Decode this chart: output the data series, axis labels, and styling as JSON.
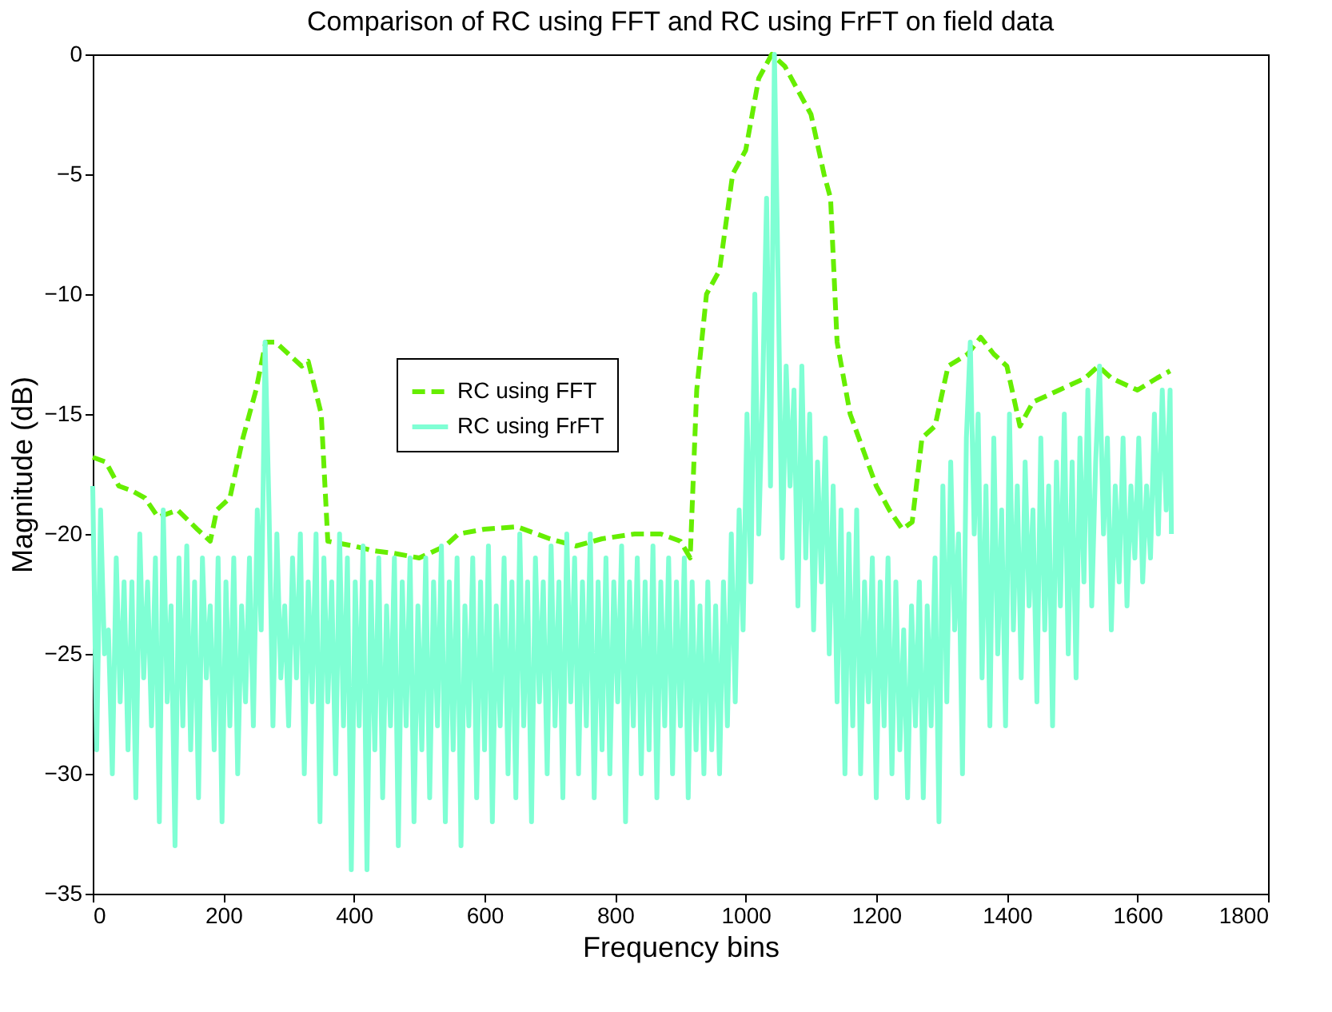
{
  "chart_data": {
    "type": "line",
    "title": "Comparison of RC using FFT and RC using FrFT on field data",
    "xlabel": "Frequency bins",
    "ylabel": "Magnitude (dB)",
    "xlim": [
      0,
      1800
    ],
    "xticks": [
      0,
      200,
      400,
      600,
      800,
      1000,
      1200,
      1400,
      1600,
      1800
    ],
    "ylim": [
      -35,
      0
    ],
    "yticks": [
      -35,
      -30,
      -25,
      -20,
      -15,
      -10,
      -5,
      0
    ],
    "grid": false,
    "legend": "top left",
    "series": [
      {
        "name": "RC using FFT",
        "color": "#66ee00",
        "line_style": "dashed",
        "x": [
          0,
          20,
          40,
          60,
          80,
          100,
          130,
          160,
          180,
          190,
          210,
          230,
          250,
          265,
          280,
          300,
          320,
          330,
          350,
          360,
          400,
          430,
          460,
          500,
          540,
          560,
          600,
          650,
          700,
          740,
          780,
          830,
          870,
          900,
          915,
          925,
          940,
          960,
          980,
          1000,
          1020,
          1040,
          1060,
          1080,
          1100,
          1120,
          1130,
          1140,
          1160,
          1180,
          1200,
          1220,
          1240,
          1255,
          1270,
          1290,
          1310,
          1340,
          1360,
          1380,
          1400,
          1420,
          1440,
          1480,
          1520,
          1540,
          1560,
          1600,
          1630,
          1650
        ],
        "values": [
          -16.8,
          -17,
          -18,
          -18.2,
          -18.5,
          -19.3,
          -19,
          -19.8,
          -20.3,
          -19,
          -18.5,
          -16,
          -14,
          -12,
          -12,
          -12.5,
          -13,
          -12.8,
          -15,
          -20.3,
          -20.5,
          -20.7,
          -20.8,
          -21,
          -20.5,
          -20,
          -19.8,
          -19.7,
          -20.2,
          -20.5,
          -20.2,
          -20,
          -20,
          -20.3,
          -21,
          -14,
          -10,
          -9,
          -5,
          -4,
          -1,
          0,
          -0.5,
          -1.5,
          -2.5,
          -5,
          -6,
          -12,
          -15,
          -16.5,
          -18,
          -19,
          -19.8,
          -19.5,
          -16,
          -15.5,
          -13,
          -12.5,
          -11.8,
          -12.5,
          -13,
          -15.5,
          -14.5,
          -14,
          -13.5,
          -13,
          -13.5,
          -14,
          -13.5,
          -13.2
        ]
      },
      {
        "name": "RC using FrFT",
        "color": "#7fffd4",
        "line_style": "solid",
        "x": [
          0,
          6,
          12,
          18,
          24,
          30,
          36,
          42,
          48,
          54,
          60,
          66,
          72,
          78,
          84,
          90,
          96,
          102,
          108,
          114,
          120,
          126,
          132,
          138,
          144,
          150,
          156,
          162,
          168,
          174,
          180,
          186,
          192,
          198,
          204,
          210,
          216,
          222,
          228,
          234,
          240,
          246,
          252,
          258,
          264,
          270,
          276,
          282,
          288,
          294,
          300,
          306,
          312,
          318,
          324,
          330,
          336,
          342,
          348,
          354,
          360,
          366,
          372,
          378,
          384,
          390,
          396,
          402,
          408,
          414,
          420,
          426,
          432,
          438,
          444,
          450,
          456,
          462,
          468,
          474,
          480,
          486,
          492,
          498,
          504,
          510,
          516,
          522,
          528,
          534,
          540,
          546,
          552,
          558,
          564,
          570,
          576,
          582,
          588,
          594,
          600,
          606,
          612,
          618,
          624,
          630,
          636,
          642,
          648,
          654,
          660,
          666,
          672,
          678,
          684,
          690,
          696,
          702,
          708,
          714,
          720,
          726,
          732,
          738,
          744,
          750,
          756,
          762,
          768,
          774,
          780,
          786,
          792,
          798,
          804,
          810,
          816,
          822,
          828,
          834,
          840,
          846,
          852,
          858,
          864,
          870,
          876,
          882,
          888,
          894,
          900,
          906,
          912,
          918,
          924,
          930,
          936,
          942,
          948,
          954,
          960,
          966,
          972,
          978,
          984,
          990,
          996,
          1002,
          1008,
          1014,
          1020,
          1026,
          1032,
          1038,
          1044,
          1050,
          1056,
          1062,
          1068,
          1074,
          1080,
          1086,
          1092,
          1098,
          1104,
          1110,
          1116,
          1122,
          1128,
          1134,
          1140,
          1146,
          1152,
          1158,
          1164,
          1170,
          1176,
          1182,
          1188,
          1194,
          1200,
          1206,
          1212,
          1218,
          1224,
          1230,
          1236,
          1242,
          1248,
          1254,
          1260,
          1266,
          1272,
          1278,
          1284,
          1290,
          1296,
          1302,
          1308,
          1314,
          1320,
          1326,
          1332,
          1338,
          1344,
          1350,
          1356,
          1362,
          1368,
          1374,
          1380,
          1386,
          1392,
          1398,
          1404,
          1410,
          1416,
          1422,
          1428,
          1434,
          1440,
          1446,
          1452,
          1458,
          1464,
          1470,
          1476,
          1482,
          1488,
          1494,
          1500,
          1506,
          1512,
          1518,
          1524,
          1530,
          1536,
          1542,
          1548,
          1554,
          1560,
          1566,
          1572,
          1578,
          1584,
          1590,
          1596,
          1602,
          1608,
          1614,
          1620,
          1626,
          1632,
          1638,
          1644,
          1650,
          1652
        ],
        "values": [
          -18,
          -29,
          -19,
          -25,
          -24,
          -30,
          -21,
          -27,
          -22,
          -29,
          -22,
          -31,
          -20,
          -26,
          -22,
          -28,
          -21,
          -32,
          -19,
          -27,
          -23,
          -33,
          -21,
          -28,
          -20.5,
          -29,
          -22,
          -31,
          -21,
          -26,
          -23,
          -29,
          -21,
          -32,
          -22,
          -28,
          -21,
          -30,
          -23,
          -27,
          -21,
          -28,
          -19,
          -24,
          -12,
          -19,
          -28,
          -20,
          -26,
          -23,
          -28,
          -21,
          -26,
          -20,
          -30,
          -22,
          -27,
          -20,
          -32,
          -21,
          -27,
          -22,
          -30,
          -20,
          -28,
          -21,
          -34,
          -22,
          -28,
          -20.5,
          -34,
          -22,
          -29,
          -21,
          -31,
          -23,
          -28,
          -21,
          -33,
          -22,
          -28,
          -21,
          -32,
          -23,
          -29,
          -21,
          -31,
          -22,
          -28,
          -20.5,
          -32,
          -22,
          -29,
          -21,
          -33,
          -23,
          -28,
          -21,
          -31,
          -22,
          -29,
          -20.5,
          -32,
          -23,
          -28,
          -21,
          -30,
          -22,
          -31,
          -20,
          -28,
          -22,
          -32,
          -21,
          -27,
          -22,
          -30,
          -20.5,
          -28,
          -22,
          -31,
          -20,
          -27,
          -21,
          -30,
          -22,
          -28,
          -20,
          -31,
          -22,
          -29,
          -21,
          -30,
          -22,
          -27,
          -20.5,
          -32,
          -22,
          -28,
          -21,
          -30,
          -22,
          -29,
          -20.5,
          -31,
          -22,
          -28,
          -21,
          -30,
          -22,
          -28,
          -21,
          -31,
          -22,
          -29,
          -23,
          -30,
          -22,
          -29,
          -23,
          -30,
          -22,
          -28,
          -20,
          -27,
          -19,
          -24,
          -15,
          -22,
          -10,
          -20,
          -14,
          -6,
          -18,
          0,
          -10,
          -21,
          -13,
          -18,
          -14,
          -23,
          -13,
          -21,
          -15,
          -24,
          -17,
          -22,
          -16,
          -25,
          -18,
          -27,
          -19,
          -30,
          -20,
          -28,
          -19,
          -30,
          -22,
          -27,
          -21,
          -31,
          -22,
          -28,
          -21,
          -30,
          -22,
          -29,
          -24,
          -31,
          -23,
          -28,
          -22,
          -31,
          -23,
          -28,
          -21,
          -32,
          -18,
          -27,
          -17,
          -24,
          -20,
          -30,
          -16,
          -12,
          -20,
          -15,
          -26,
          -18,
          -28,
          -16,
          -25,
          -19,
          -28,
          -15,
          -24,
          -18,
          -26,
          -17,
          -23,
          -19,
          -27,
          -16,
          -24,
          -18,
          -28,
          -17,
          -23,
          -15,
          -25,
          -17,
          -26,
          -16,
          -22,
          -14,
          -23,
          -17,
          -13,
          -20,
          -16,
          -24,
          -18,
          -22,
          -16,
          -23,
          -18,
          -21,
          -16,
          -22,
          -18,
          -21,
          -15,
          -20,
          -14,
          -19,
          -14,
          -20
        ]
      }
    ]
  }
}
